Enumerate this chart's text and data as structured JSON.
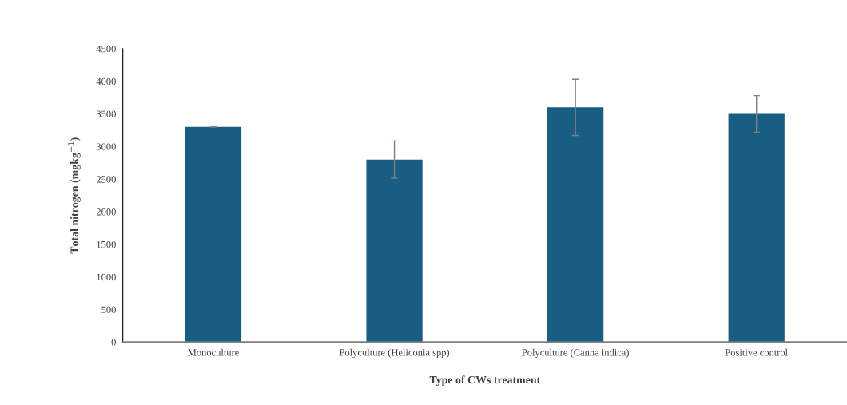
{
  "chart_data": {
    "type": "bar",
    "categories": [
      "Monoculture",
      "Polyculture (Heliconia spp)",
      "Polyculture (Canna indica)",
      "Positive control"
    ],
    "values": [
      3300,
      2800,
      3600,
      3500
    ],
    "errors": [
      0,
      285,
      430,
      280
    ],
    "color": "#175e82",
    "xlabel": "Type of CWs treatment",
    "ylabel": "Total nitrogen (mgkg$^{−1}$)",
    "ylim": [
      0,
      4500
    ],
    "yticks": [
      0,
      500,
      1000,
      1500,
      2000,
      2500,
      3000,
      3500,
      4000,
      4500
    ],
    "grid": false,
    "legend": false
  }
}
